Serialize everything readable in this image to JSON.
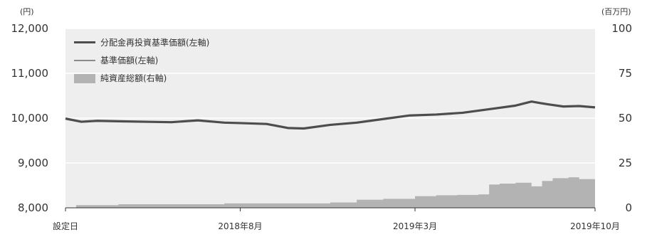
{
  "chart_data": {
    "type": "line",
    "units": {
      "left": "(円)",
      "right": "(百万円)"
    },
    "y_left": {
      "ticks": [
        "12,000",
        "11,000",
        "10,000",
        "9,000",
        "8,000"
      ],
      "values": [
        12000,
        11000,
        10000,
        9000,
        8000
      ],
      "lim": [
        8000,
        12000
      ]
    },
    "y_right": {
      "ticks": [
        "100",
        "75",
        "50",
        "25",
        "0"
      ],
      "values": [
        100,
        75,
        50,
        25,
        0
      ],
      "lim": [
        0,
        100
      ]
    },
    "x_ticks": [
      "設定日",
      "2018年8月",
      "2019年3月",
      "2019年10月"
    ],
    "x_tick_positions": [
      0,
      0.33,
      0.66,
      1.0
    ],
    "legend": [
      "分配金再投資基準価額(左軸)",
      "基準価額(左軸)",
      "純資産総額(右軸)"
    ],
    "legend_placement": "top-left",
    "grid": true,
    "colors": {
      "nav_reinvest": "#4d4d4d",
      "nav": "#8a8a8a",
      "net_assets": "#b3b3b3",
      "plot_bg": "#eeeeee",
      "grid": "#ffffff"
    },
    "series": [
      {
        "name": "分配金再投資基準価額(左軸)",
        "axis": "left",
        "x": [
          0,
          0.03,
          0.06,
          0.1,
          0.15,
          0.2,
          0.25,
          0.3,
          0.33,
          0.38,
          0.42,
          0.45,
          0.5,
          0.55,
          0.6,
          0.65,
          0.7,
          0.75,
          0.8,
          0.85,
          0.88,
          0.91,
          0.94,
          0.97,
          1.0
        ],
        "values": [
          9990,
          9920,
          9940,
          9930,
          9920,
          9910,
          9950,
          9900,
          9890,
          9870,
          9780,
          9770,
          9850,
          9900,
          9980,
          10060,
          10080,
          10120,
          10200,
          10280,
          10370,
          10310,
          10260,
          10270,
          10240
        ]
      },
      {
        "name": "基準価額(左軸)",
        "axis": "left",
        "x": [
          0,
          0.03,
          0.06,
          0.1,
          0.15,
          0.2,
          0.25,
          0.3,
          0.33,
          0.38,
          0.42,
          0.45,
          0.5,
          0.55,
          0.6,
          0.65,
          0.7,
          0.75,
          0.8,
          0.85,
          0.88,
          0.91,
          0.94,
          0.97,
          1.0
        ],
        "values": [
          9990,
          9920,
          9940,
          9930,
          9920,
          9910,
          9950,
          9900,
          9890,
          9870,
          9780,
          9770,
          9850,
          9900,
          9980,
          10060,
          10080,
          10120,
          10200,
          10280,
          10370,
          10310,
          10260,
          10270,
          10240
        ]
      },
      {
        "name": "純資産総額(右軸)",
        "axis": "right",
        "x": [
          0,
          0.02,
          0.1,
          0.3,
          0.5,
          0.55,
          0.6,
          0.66,
          0.7,
          0.74,
          0.78,
          0.8,
          0.82,
          0.85,
          0.88,
          0.9,
          0.92,
          0.95,
          0.97,
          1.0
        ],
        "values": [
          0.2,
          1.5,
          2.0,
          2.5,
          3.0,
          4.5,
          5.0,
          6.5,
          7.0,
          7.2,
          7.5,
          13.0,
          13.5,
          14.0,
          12.0,
          15.0,
          16.5,
          17.0,
          16.0,
          15.0
        ]
      }
    ]
  }
}
